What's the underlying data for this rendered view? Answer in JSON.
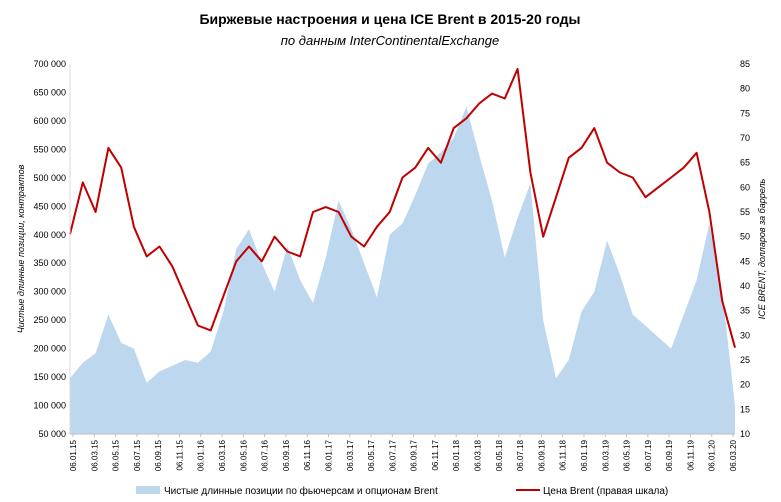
{
  "chart_data": {
    "type": "line",
    "title": "Биржевые настроения  и цена ICE Brent в 2015-20 годы",
    "subtitle": "по данным InterContinentalExchange",
    "ylabel_left": "Чистые длинные позиции, контрактов",
    "ylabel_right": "ICE BRENT, долларов за баррель",
    "ylim_left": [
      50000,
      700000
    ],
    "yticks_left": [
      "700 000",
      "650 000",
      "600 000",
      "550 000",
      "500 000",
      "450 000",
      "400 000",
      "350 000",
      "300 000",
      "250 000",
      "200 000",
      "150 000",
      "100 000",
      "50 000"
    ],
    "ylim_right": [
      10,
      85
    ],
    "yticks_right": [
      "85",
      "80",
      "75",
      "70",
      "65",
      "60",
      "55",
      "50",
      "45",
      "40",
      "35",
      "30",
      "25",
      "20",
      "15",
      "10"
    ],
    "x_tick_labels": [
      "06.01.15",
      "06.03.15",
      "06.05.15",
      "06.07.15",
      "06.09.15",
      "06.11.15",
      "06.01.16",
      "06.03.16",
      "06.05.16",
      "06.07.16",
      "06.09.16",
      "06.11.16",
      "06.01.17",
      "06.03.17",
      "06.05.17",
      "06.07.17",
      "06.09.17",
      "06.11.17",
      "06.01.18",
      "06.03.18",
      "06.05.18",
      "06.07.18",
      "06.09.18",
      "06.11.18",
      "06.01.19",
      "06.03.19",
      "06.05.19",
      "06.07.19",
      "06.09.19",
      "06.11.19",
      "06.01.20",
      "06.03.20"
    ],
    "series": [
      {
        "name": "Чистые длинные позиции по фьючерсам и опционам Brent",
        "type": "area",
        "color": "#bdd7ee",
        "values": [
          148000,
          175000,
          192000,
          260000,
          210000,
          200000,
          140000,
          160000,
          170000,
          180000,
          175000,
          195000,
          265000,
          375000,
          410000,
          350000,
          300000,
          380000,
          320000,
          280000,
          360000,
          460000,
          410000,
          350000,
          290000,
          400000,
          420000,
          470000,
          525000,
          545000,
          570000,
          625000,
          540000,
          460000,
          360000,
          430000,
          490000,
          250000,
          148000,
          180000,
          265000,
          300000,
          390000,
          330000,
          260000,
          240000,
          220000,
          200000,
          260000,
          320000,
          420000,
          300000,
          100000
        ]
      },
      {
        "name": "Цена Brent (правая шкала)",
        "type": "line",
        "color": "#c00000",
        "values": [
          50.5,
          61,
          55,
          68,
          64,
          52,
          46,
          48,
          44,
          38,
          32,
          31,
          38,
          45,
          48,
          45,
          50,
          47,
          46,
          55,
          56,
          55,
          50,
          48,
          52,
          55,
          62,
          64,
          68,
          65,
          72,
          74,
          77,
          79,
          78,
          84,
          63,
          50,
          58,
          66,
          68,
          72,
          65,
          63,
          62,
          58,
          60,
          62,
          64,
          67,
          55,
          37,
          27.5
        ]
      }
    ],
    "legend_position": "bottom"
  }
}
